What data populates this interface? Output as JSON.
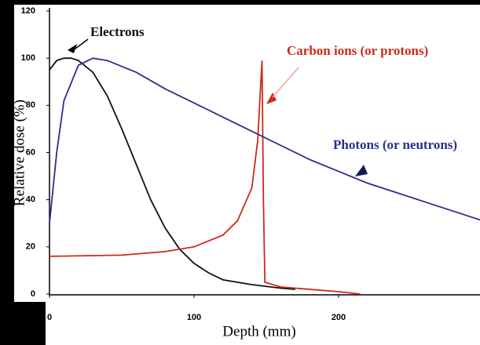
{
  "chart_data": {
    "type": "line",
    "x_label": "Depth (mm)",
    "y_label": "Relative dose (%)",
    "xlim": [
      0,
      300
    ],
    "ylim": [
      0,
      120
    ],
    "xticks": [
      0,
      100,
      200
    ],
    "yticks": [
      0,
      20,
      40,
      60,
      80,
      100,
      120
    ],
    "series": [
      {
        "name": "Electrons",
        "color": "#111111",
        "x": [
          0,
          5,
          10,
          15,
          20,
          30,
          40,
          50,
          60,
          70,
          80,
          90,
          100,
          110,
          120,
          140,
          160,
          170
        ],
        "values": [
          95,
          99,
          100,
          100,
          99,
          94,
          84,
          70,
          55,
          40,
          28,
          19,
          13,
          9,
          6,
          4,
          2.5,
          2
        ]
      },
      {
        "name": "Carbon ions (or protons)",
        "color": "#cc2a1a",
        "x": [
          0,
          50,
          80,
          100,
          120,
          130,
          140,
          144,
          147,
          148,
          149,
          160,
          200,
          215
        ],
        "values": [
          16,
          16.5,
          18,
          20,
          25,
          31,
          45,
          65,
          99,
          40,
          5,
          3,
          1,
          0
        ]
      },
      {
        "name": "Photons (or neutrons)",
        "color": "#2a2f8a",
        "x": [
          0,
          5,
          10,
          20,
          30,
          40,
          60,
          80,
          100,
          120,
          140,
          160,
          180,
          200,
          220,
          240,
          260,
          280,
          300
        ],
        "values": [
          30,
          60,
          82,
          97,
          100,
          99,
          94,
          87,
          81,
          75,
          69,
          63,
          57,
          52,
          47,
          43,
          39,
          35,
          31
        ]
      }
    ]
  }
}
